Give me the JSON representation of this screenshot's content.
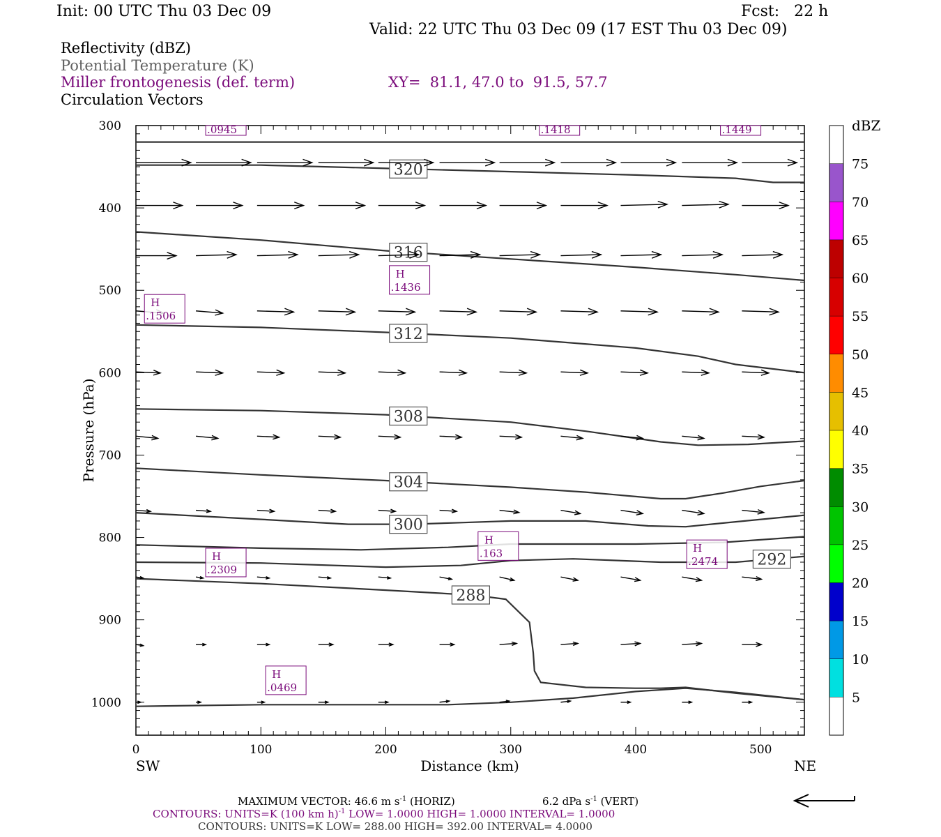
{
  "header": {
    "init": "Init: 00 UTC Thu 03 Dec 09",
    "fcst": "Fcst:   22 h",
    "valid": "Valid: 22 UTC Thu 03 Dec 09 (17 EST Thu 03 Dec 09)"
  },
  "fields": {
    "reflectivity": "Reflectivity (dBZ)",
    "theta": "Potential Temperature (K)",
    "frontogenesis": "Miller frontogenesis (def. term)",
    "xy": "XY=  81.1, 47.0 to  91.5, 57.7",
    "vectors": "Circulation Vectors"
  },
  "colors": {
    "theta_line": "#333333",
    "frontogenesis": "#7a0a7a",
    "vector": "#000000"
  },
  "chart_data": {
    "type": "line",
    "xlabel": "Distance (km)",
    "ylabel": "Pressure (hPa)",
    "x_ticks": [
      "0",
      "100",
      "200",
      "300",
      "400",
      "500"
    ],
    "y_ticks": [
      "300",
      "400",
      "500",
      "600",
      "700",
      "800",
      "900",
      "1000"
    ],
    "xlim": [
      0,
      535
    ],
    "ylim": [
      300,
      1040
    ],
    "y_inverted": true,
    "left_end_label": "SW",
    "right_end_label": "NE",
    "theta_contours": [
      {
        "label": "",
        "label_x": null,
        "points": [
          [
            0,
            320
          ],
          [
            535,
            320
          ]
        ]
      },
      {
        "label": "320",
        "label_x": 218,
        "points": [
          [
            0,
            348
          ],
          [
            100,
            348
          ],
          [
            200,
            352
          ],
          [
            300,
            356
          ],
          [
            400,
            360
          ],
          [
            480,
            364
          ],
          [
            510,
            369
          ],
          [
            535,
            369
          ]
        ]
      },
      {
        "label": "316",
        "label_x": 218,
        "points": [
          [
            0,
            429
          ],
          [
            100,
            439
          ],
          [
            200,
            452
          ],
          [
            300,
            462
          ],
          [
            400,
            472
          ],
          [
            480,
            481
          ],
          [
            535,
            488
          ]
        ]
      },
      {
        "label": "312",
        "label_x": 218,
        "points": [
          [
            0,
            542
          ],
          [
            100,
            545
          ],
          [
            200,
            551
          ],
          [
            300,
            558
          ],
          [
            400,
            570
          ],
          [
            450,
            580
          ],
          [
            480,
            590
          ],
          [
            535,
            600
          ]
        ]
      },
      {
        "label": "308",
        "label_x": 218,
        "points": [
          [
            0,
            644
          ],
          [
            100,
            646
          ],
          [
            200,
            651
          ],
          [
            300,
            660
          ],
          [
            360,
            671
          ],
          [
            420,
            684
          ],
          [
            450,
            688
          ],
          [
            490,
            687
          ],
          [
            535,
            683
          ]
        ]
      },
      {
        "label": "304",
        "label_x": 218,
        "points": [
          [
            0,
            716
          ],
          [
            100,
            724
          ],
          [
            200,
            731
          ],
          [
            300,
            739
          ],
          [
            360,
            745
          ],
          [
            420,
            753
          ],
          [
            440,
            753
          ],
          [
            470,
            746
          ],
          [
            500,
            738
          ],
          [
            535,
            731
          ]
        ]
      },
      {
        "label": "300",
        "label_x": 218,
        "points": [
          [
            0,
            770
          ],
          [
            100,
            778
          ],
          [
            170,
            784
          ],
          [
            220,
            784
          ],
          [
            260,
            782
          ],
          [
            300,
            780
          ],
          [
            360,
            780
          ],
          [
            410,
            786
          ],
          [
            440,
            787
          ],
          [
            480,
            781
          ],
          [
            535,
            773
          ]
        ]
      },
      {
        "label": "",
        "label_x": null,
        "points": [
          [
            0,
            809
          ],
          [
            100,
            813
          ],
          [
            180,
            815
          ],
          [
            250,
            812
          ],
          [
            300,
            808
          ],
          [
            400,
            808
          ],
          [
            470,
            806
          ],
          [
            535,
            799
          ]
        ]
      },
      {
        "label": "292",
        "label_x": 509,
        "points": [
          [
            0,
            830
          ],
          [
            100,
            831
          ],
          [
            200,
            836
          ],
          [
            260,
            834
          ],
          [
            300,
            828
          ],
          [
            350,
            826
          ],
          [
            420,
            830
          ],
          [
            480,
            830
          ],
          [
            535,
            823
          ]
        ]
      },
      {
        "label": "288",
        "label_x": 268,
        "points": [
          [
            0,
            850
          ],
          [
            100,
            856
          ],
          [
            200,
            864
          ],
          [
            270,
            870
          ],
          [
            296,
            875
          ],
          [
            315,
            903
          ],
          [
            318,
            940
          ],
          [
            319,
            962
          ],
          [
            324,
            976
          ],
          [
            360,
            982
          ],
          [
            400,
            983
          ],
          [
            420,
            983
          ],
          [
            440,
            982
          ],
          [
            480,
            989
          ],
          [
            535,
            997
          ]
        ]
      },
      {
        "label": "",
        "label_x": null,
        "points": [
          [
            0,
            1005
          ],
          [
            100,
            1003
          ],
          [
            200,
            1003
          ],
          [
            250,
            1003
          ],
          [
            300,
            1000
          ],
          [
            350,
            995
          ],
          [
            400,
            987
          ],
          [
            440,
            983
          ],
          [
            480,
            988
          ],
          [
            535,
            997
          ]
        ]
      }
    ],
    "frontogenesis_maxima": [
      {
        "label": "H",
        "value": ".0945",
        "x": 72,
        "p": 304
      },
      {
        "label": "H",
        "value": ".1418",
        "x": 339,
        "p": 304
      },
      {
        "label": "H",
        "value": ".1449",
        "x": 484,
        "p": 304
      },
      {
        "label": "H",
        "value": ".1436",
        "x": 219,
        "p": 487
      },
      {
        "label": "H",
        "value": ".1506",
        "x": 23,
        "p": 522
      },
      {
        "label": "H",
        "value": ".163",
        "x": 290,
        "p": 810
      },
      {
        "label": "H",
        "value": ".2474",
        "x": 457,
        "p": 820
      },
      {
        "label": "H",
        "value": ".2309",
        "x": 72,
        "p": 830
      },
      {
        "label": "H",
        "value": ".0469",
        "x": 120,
        "p": 973
      }
    ],
    "vector_rows": [
      {
        "p": 345,
        "vectors": [
          [
            45,
            0
          ],
          [
            45,
            0
          ],
          [
            45,
            0
          ],
          [
            45,
            0
          ],
          [
            45,
            0
          ],
          [
            45,
            0
          ],
          [
            45,
            0
          ],
          [
            45,
            0
          ],
          [
            45,
            0
          ],
          [
            45,
            0
          ],
          [
            45,
            0
          ]
        ]
      },
      {
        "p": 397,
        "vectors": [
          [
            38,
            0
          ],
          [
            38,
            0
          ],
          [
            38,
            0
          ],
          [
            38,
            0
          ],
          [
            38,
            0
          ],
          [
            38,
            0
          ],
          [
            38,
            0
          ],
          [
            38,
            0
          ],
          [
            38,
            -1
          ],
          [
            38,
            -1
          ],
          [
            38,
            0
          ]
        ]
      },
      {
        "p": 458,
        "vectors": [
          [
            33,
            0
          ],
          [
            33,
            -1
          ],
          [
            33,
            -1
          ],
          [
            33,
            -1
          ],
          [
            33,
            -1
          ],
          [
            33,
            -1
          ],
          [
            33,
            -1
          ],
          [
            33,
            -1
          ],
          [
            33,
            -1
          ],
          [
            33,
            -1
          ],
          [
            33,
            -1
          ]
        ]
      },
      {
        "p": 525,
        "vectors": [
          [
            23,
            2
          ],
          [
            22,
            2
          ],
          [
            30,
            1
          ],
          [
            30,
            1
          ],
          [
            30,
            1
          ],
          [
            30,
            1
          ],
          [
            30,
            1
          ],
          [
            30,
            1
          ],
          [
            30,
            1
          ],
          [
            30,
            1
          ],
          [
            30,
            1
          ]
        ]
      },
      {
        "p": 599,
        "vectors": [
          [
            20,
            1
          ],
          [
            22,
            1
          ],
          [
            22,
            1
          ],
          [
            22,
            1
          ],
          [
            22,
            1
          ],
          [
            22,
            1
          ],
          [
            22,
            1
          ],
          [
            22,
            1
          ],
          [
            22,
            1
          ],
          [
            22,
            1
          ],
          [
            22,
            1
          ]
        ]
      },
      {
        "p": 677,
        "vectors": [
          [
            18,
            2
          ],
          [
            18,
            2
          ],
          [
            18,
            1
          ],
          [
            18,
            1
          ],
          [
            18,
            1
          ],
          [
            18,
            1
          ],
          [
            18,
            1
          ],
          [
            18,
            2
          ],
          [
            18,
            2
          ],
          [
            18,
            2
          ],
          [
            18,
            1
          ]
        ]
      },
      {
        "p": 767,
        "vectors": [
          [
            12,
            1
          ],
          [
            12,
            1
          ],
          [
            14,
            1
          ],
          [
            14,
            1
          ],
          [
            14,
            1
          ],
          [
            14,
            1
          ],
          [
            16,
            2
          ],
          [
            16,
            3
          ],
          [
            18,
            3
          ],
          [
            18,
            3
          ],
          [
            18,
            2
          ]
        ]
      },
      {
        "p": 848,
        "vectors": [
          [
            6,
            1
          ],
          [
            6,
            1
          ],
          [
            10,
            1
          ],
          [
            10,
            1
          ],
          [
            10,
            1
          ],
          [
            10,
            2
          ],
          [
            12,
            3
          ],
          [
            14,
            3
          ],
          [
            16,
            3
          ],
          [
            16,
            3
          ],
          [
            16,
            2
          ]
        ]
      },
      {
        "p": 930,
        "vectors": [
          [
            6,
            1
          ],
          [
            8,
            0
          ],
          [
            10,
            0
          ],
          [
            12,
            0
          ],
          [
            12,
            0
          ],
          [
            12,
            0
          ],
          [
            14,
            -1
          ],
          [
            14,
            -1
          ],
          [
            16,
            -1
          ],
          [
            16,
            -1
          ],
          [
            16,
            0
          ]
        ]
      },
      {
        "p": 1000,
        "vectors": [
          [
            4,
            0
          ],
          [
            4,
            0
          ],
          [
            6,
            0
          ],
          [
            8,
            0
          ],
          [
            8,
            0
          ],
          [
            8,
            -1
          ],
          [
            8,
            -1
          ],
          [
            8,
            -1
          ],
          [
            8,
            0
          ],
          [
            8,
            0
          ],
          [
            8,
            0
          ]
        ]
      }
    ],
    "colorbar": {
      "unit": "dBZ",
      "tick_labels": [
        "5",
        "10",
        "15",
        "20",
        "25",
        "30",
        "35",
        "40",
        "45",
        "50",
        "55",
        "60",
        "65",
        "70",
        "75"
      ],
      "colors": [
        "#ffffff",
        "#00e0e0",
        "#0099e6",
        "#0000cc",
        "#00ff00",
        "#00c400",
        "#008c00",
        "#ffff00",
        "#e6bf00",
        "#ff8c00",
        "#ff0000",
        "#d70000",
        "#bd0000",
        "#ff00ff",
        "#9955cc",
        "#ffffff"
      ]
    },
    "footer": {
      "max_vector": "MAXIMUM VECTOR:  46.6 m s",
      "max_vector_sup": "-1",
      "horiz": " (HORIZ)",
      "vert_val": "6.2 dPa s",
      "vert_sup": "-1",
      "vert": " (VERT)",
      "contours1_a": "CONTOURS:  UNITS=K (100 km h)",
      "contours1_sup": "-1",
      "contours1_b": "  LOW=   1.0000       HIGH=   1.0000       INTERVAL=    1.0000",
      "contours2": "CONTOURS:  UNITS=K   LOW=   288.00       HIGH=   392.00       INTERVAL=    4.0000"
    }
  }
}
